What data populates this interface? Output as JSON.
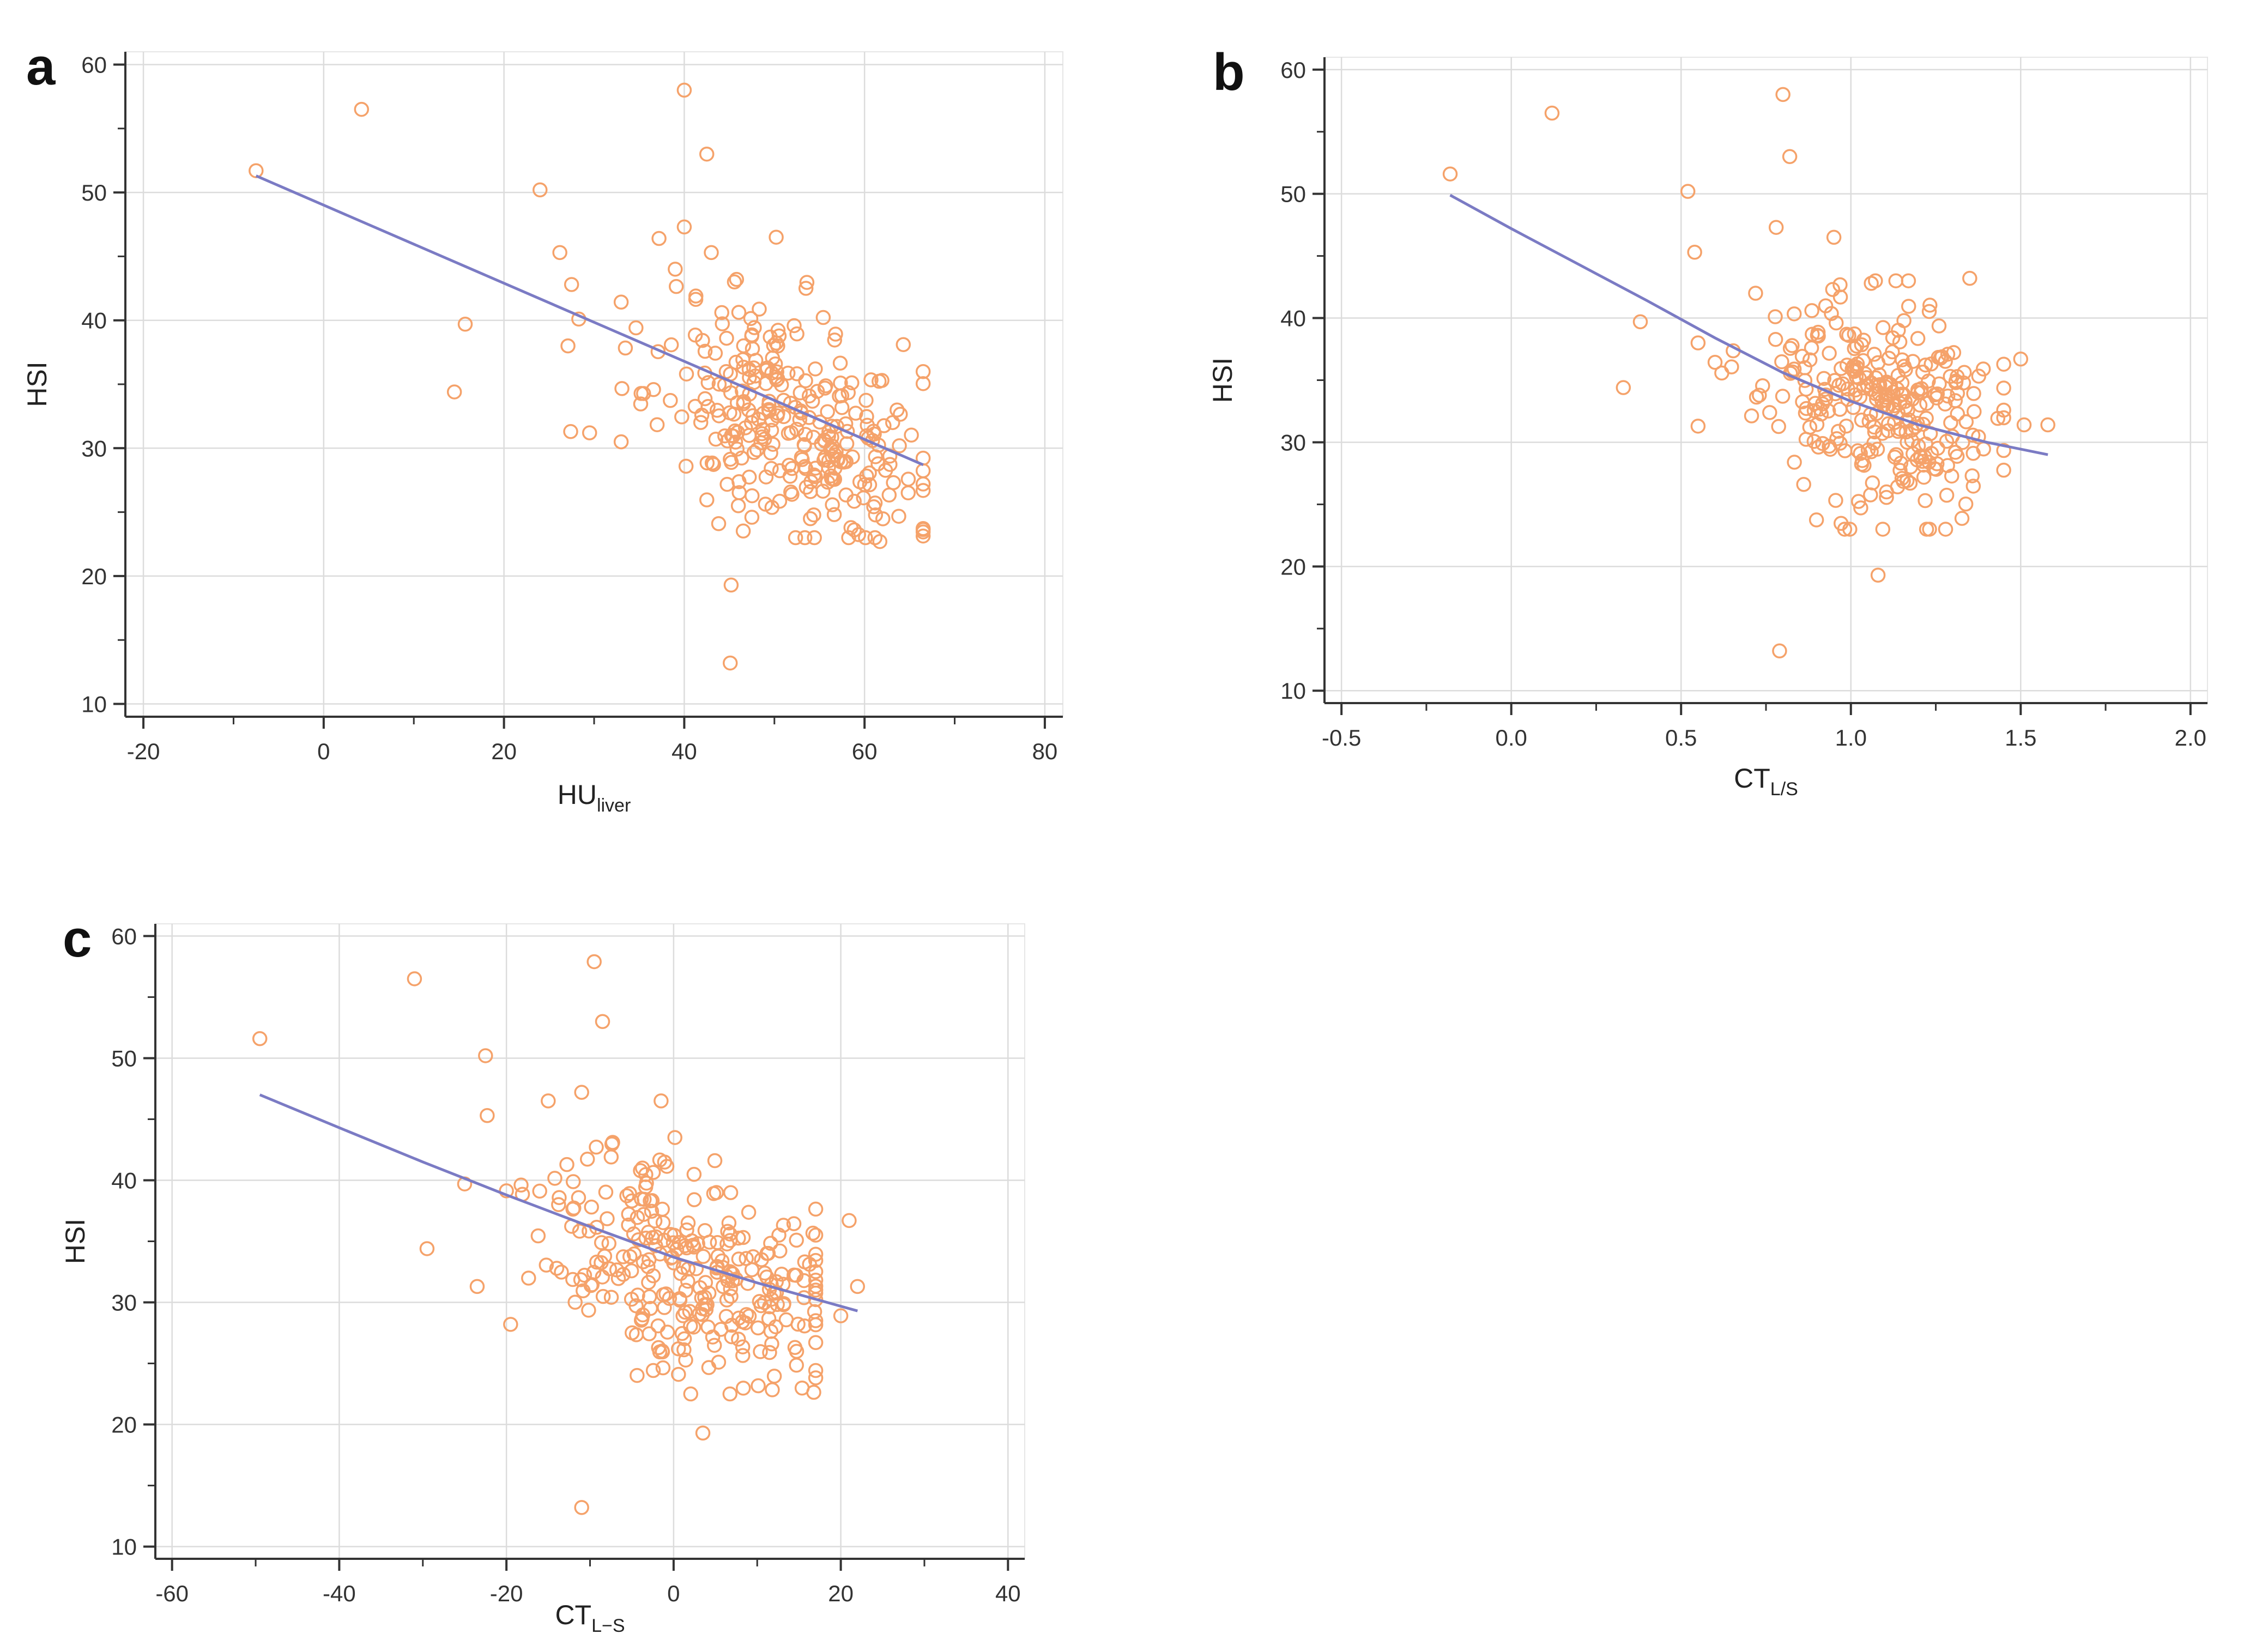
{
  "figure": {
    "colors": {
      "points": "#f5a26a",
      "fit_line": "#7b7bc4",
      "axis": "#333333",
      "grid": "#dcdcdc"
    }
  },
  "chart_data": [
    {
      "panel": "a",
      "type": "scatter",
      "title": "",
      "xlabel": "HU",
      "xlabel_sub": "liver",
      "ylabel": "HSI",
      "xlim": [
        -22,
        82
      ],
      "ylim": [
        9,
        61
      ],
      "xticks": [
        -20,
        0,
        20,
        40,
        60,
        80
      ],
      "yticks": [
        10,
        20,
        30,
        40,
        50,
        60
      ],
      "grid": true,
      "series": [
        {
          "name": "observations",
          "kind": "points",
          "outliers": [
            [
              -7.5,
              51.7
            ],
            [
              4.2,
              56.5
            ],
            [
              24,
              50.2
            ],
            [
              26.2,
              45.3
            ],
            [
              15.7,
              39.7
            ],
            [
              14.5,
              34.4
            ],
            [
              27.1,
              38.0
            ],
            [
              27.4,
              31.3
            ],
            [
              29.5,
              31.2
            ],
            [
              40,
              58.0
            ],
            [
              42.5,
              53.0
            ],
            [
              45.2,
              19.3
            ],
            [
              45.1,
              13.2
            ],
            [
              37.2,
              46.4
            ],
            [
              40,
              47.3
            ],
            [
              39,
              44.0
            ],
            [
              43,
              45.3
            ],
            [
              50.2,
              46.5
            ],
            [
              45.8,
              43.2
            ],
            [
              53.5,
              42.5
            ],
            [
              64.3,
              38.1
            ],
            [
              61.7,
              22.7
            ],
            [
              46,
              25.5
            ],
            [
              47.5,
              24.6
            ],
            [
              27.5,
              42.8
            ],
            [
              28.3,
              40.1
            ]
          ],
          "cloud": {
            "count": 290,
            "x_mean": 52,
            "x_sd": 7.5,
            "x_range": [
              33,
              66.5
            ],
            "y_mean": 32,
            "y_sd": 4.2,
            "y_range": [
              23,
              43
            ],
            "slope": -0.3,
            "seed": 11
          }
        },
        {
          "name": "fit",
          "kind": "line",
          "x": [
            -7.5,
            66.5
          ],
          "y": [
            51.3,
            28.7
          ]
        }
      ]
    },
    {
      "panel": "b",
      "type": "scatter",
      "title": "",
      "xlabel": "CT",
      "xlabel_sub": "L/S",
      "ylabel": "HSI",
      "xlim": [
        -0.55,
        2.05
      ],
      "ylim": [
        9,
        61
      ],
      "xticks": [
        -0.5,
        0.0,
        0.5,
        1.0,
        1.5,
        2.0
      ],
      "xtick_labels": [
        "-0.5",
        "0.0",
        "0.5",
        "1.0",
        "1.5",
        "2.0"
      ],
      "yticks": [
        10,
        20,
        30,
        40,
        50,
        60
      ],
      "grid": true,
      "series": [
        {
          "name": "observations",
          "kind": "points",
          "outliers": [
            [
              -0.18,
              51.6
            ],
            [
              0.12,
              56.5
            ],
            [
              0.52,
              50.2
            ],
            [
              0.54,
              45.3
            ],
            [
              0.38,
              39.7
            ],
            [
              0.33,
              34.4
            ],
            [
              0.55,
              38.0
            ],
            [
              0.55,
              31.3
            ],
            [
              0.8,
              58.0
            ],
            [
              0.82,
              53.0
            ],
            [
              1.08,
              19.3
            ],
            [
              0.79,
              13.2
            ],
            [
              1.5,
              36.7
            ],
            [
              1.51,
              31.4
            ],
            [
              1.58,
              31.4
            ],
            [
              1.35,
              43.2
            ],
            [
              0.78,
              47.3
            ],
            [
              0.95,
              46.5
            ]
          ],
          "cloud": {
            "count": 290,
            "x_mean": 1.08,
            "x_sd": 0.17,
            "x_range": [
              0.6,
              1.45
            ],
            "y_mean": 33,
            "y_sd": 4.2,
            "y_range": [
              23,
              43
            ],
            "slope": -8,
            "seed": 23
          }
        },
        {
          "name": "fit",
          "kind": "line",
          "x": [
            -0.18,
            0.0,
            0.2,
            0.4,
            0.6,
            0.8,
            1.0,
            1.2,
            1.4,
            1.58
          ],
          "y": [
            49.9,
            47.2,
            44.3,
            41.4,
            38.4,
            35.6,
            33.3,
            31.4,
            30.0,
            29.0
          ]
        }
      ]
    },
    {
      "panel": "c",
      "type": "scatter",
      "title": "",
      "xlabel": "CT",
      "xlabel_sub": "L−S",
      "ylabel": "HSI",
      "xlim": [
        -62,
        42
      ],
      "ylim": [
        9,
        61
      ],
      "xticks": [
        -60,
        -40,
        -20,
        0,
        20,
        40
      ],
      "yticks": [
        10,
        20,
        30,
        40,
        50,
        60
      ],
      "grid": true,
      "series": [
        {
          "name": "observations",
          "kind": "points",
          "outliers": [
            [
              -49.5,
              51.6
            ],
            [
              -31,
              56.5
            ],
            [
              -22.5,
              50.2
            ],
            [
              -22.3,
              45.3
            ],
            [
              -25,
              39.7
            ],
            [
              -29.5,
              34.4
            ],
            [
              -23.5,
              31.3
            ],
            [
              -19.5,
              28.2
            ],
            [
              -11,
              13.2
            ],
            [
              3.5,
              19.3
            ],
            [
              -9.5,
              57.9
            ],
            [
              -8.5,
              53.0
            ],
            [
              -15,
              46.5
            ],
            [
              -11,
              47.2
            ],
            [
              -1.5,
              46.5
            ],
            [
              21,
              36.7
            ],
            [
              22,
              31.3
            ],
            [
              20,
              28.9
            ]
          ],
          "cloud": {
            "count": 290,
            "x_mean": 2,
            "x_sd": 8.5,
            "x_range": [
              -20,
              17
            ],
            "y_mean": 33,
            "y_sd": 4.3,
            "y_range": [
              22.5,
              43.5
            ],
            "slope": -0.2,
            "seed": 37
          }
        },
        {
          "name": "fit",
          "kind": "line",
          "x": [
            -49.5,
            -40,
            -30,
            -20,
            -10,
            0,
            10,
            22
          ],
          "y": [
            47.0,
            44.3,
            41.5,
            38.8,
            36.2,
            33.7,
            31.6,
            29.3
          ]
        }
      ]
    }
  ]
}
